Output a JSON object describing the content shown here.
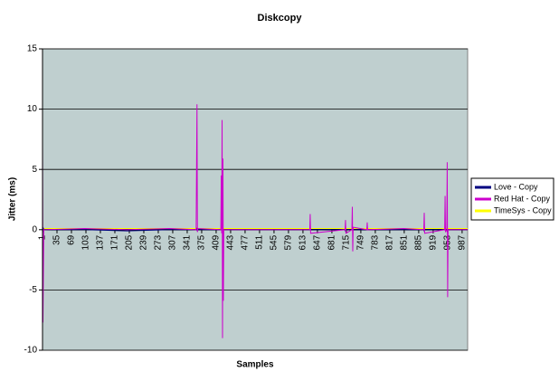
{
  "chart_data": {
    "type": "line",
    "title": "Diskcopy",
    "x_label": "Samples",
    "y_label": "Jitter (ms)",
    "x": [
      1,
      2,
      3,
      4,
      100,
      200,
      300,
      362,
      363,
      364,
      365,
      366,
      420,
      421,
      422,
      423,
      424,
      425,
      426,
      427,
      500,
      629,
      630,
      631,
      712,
      713,
      714,
      728,
      729,
      730,
      731,
      763,
      764,
      765,
      850,
      897,
      898,
      899,
      946,
      947,
      948,
      951,
      952,
      953,
      954,
      1000
    ],
    "series": [
      {
        "name": "Love - Copy",
        "color": "#000080",
        "values": [
          0,
          -0.1,
          0.1,
          0,
          0,
          -0.1,
          0,
          0,
          0.1,
          0,
          -0.1,
          0,
          0,
          0.1,
          0,
          -0.1,
          0,
          0.1,
          0,
          0,
          0,
          0,
          0.1,
          0,
          0,
          -0.1,
          0,
          0,
          0.1,
          0,
          0,
          0,
          0.1,
          0,
          0,
          0,
          -0.1,
          0,
          0,
          0.1,
          0,
          0,
          -0.1,
          0,
          0,
          0
        ]
      },
      {
        "name": "Red Hat - Copy",
        "color": "#cc00cc",
        "values": [
          7.3,
          -7.7,
          -3.8,
          0,
          0.1,
          0,
          0.1,
          0,
          5.1,
          10.4,
          -0.2,
          0.1,
          0,
          4.5,
          -0.3,
          9.1,
          -9.0,
          5.9,
          -5.9,
          0,
          0,
          0,
          1.3,
          -0.3,
          0,
          0.8,
          -0.3,
          0,
          1.9,
          -1.8,
          0.2,
          0,
          0.6,
          0,
          0.1,
          0,
          1.4,
          -0.3,
          0,
          2.8,
          -0.2,
          0,
          5.6,
          -5.6,
          0,
          0
        ]
      },
      {
        "name": "TimeSys - Copy",
        "color": "#ffff00",
        "values": [
          0.1,
          0,
          0.1,
          0.1,
          0.1,
          0.1,
          0.1,
          0.1,
          0.1,
          0.2,
          0.1,
          0.1,
          0.1,
          0.1,
          0.2,
          0.1,
          0.1,
          0.1,
          0.1,
          0.1,
          0.1,
          0.1,
          0.1,
          0.1,
          0.1,
          0.1,
          0.1,
          0.1,
          0.1,
          0.1,
          0.1,
          0.1,
          0.1,
          0.1,
          0.1,
          0.1,
          0.1,
          0.1,
          0.1,
          0.1,
          0.1,
          0.1,
          0.1,
          0.1,
          0.1,
          0.1
        ]
      }
    ],
    "xlim": [
      1,
      1000
    ],
    "xticks": [
      1,
      35,
      69,
      103,
      137,
      171,
      205,
      239,
      273,
      307,
      341,
      375,
      409,
      443,
      477,
      511,
      545,
      579,
      613,
      647,
      681,
      715,
      749,
      783,
      817,
      851,
      885,
      919,
      953,
      987
    ],
    "ylim": [
      -10,
      15
    ],
    "yticks": [
      -10,
      -5,
      0,
      5,
      10,
      15
    ],
    "grid": true,
    "legend": "right"
  }
}
